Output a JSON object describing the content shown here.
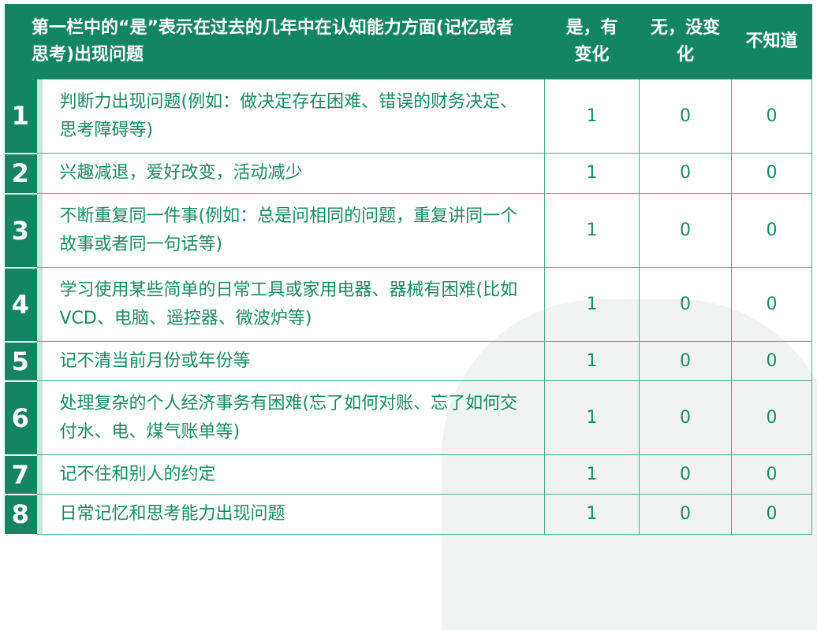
{
  "header": {
    "question": "第一栏中的“是”表示在过去的几年中在认知能力方面(记忆或者思考)出现问题",
    "yes": "是，有变化",
    "no": "无，没变化",
    "unknown": "不知道"
  },
  "rows": [
    {
      "num": "1",
      "text": "判断力出现问题(例如：做决定存在困难、错误的财务决定、思考障碍等)",
      "yes": "1",
      "no": "0",
      "unknown": "0"
    },
    {
      "num": "2",
      "text": "兴趣减退，爱好改变，活动减少",
      "yes": "1",
      "no": "0",
      "unknown": "0"
    },
    {
      "num": "3",
      "text": "不断重复同一件事(例如：总是问相同的问题，重复讲同一个故事或者同一句话等)",
      "yes": "1",
      "no": "0",
      "unknown": "0"
    },
    {
      "num": "4",
      "text": "学习使用某些简单的日常工具或家用电器、器械有困难(比如VCD、电脑、遥控器、微波炉等)",
      "yes": "1",
      "no": "0",
      "unknown": "0"
    },
    {
      "num": "5",
      "text": "记不清当前月份或年份等",
      "yes": "1",
      "no": "0",
      "unknown": "0"
    },
    {
      "num": "6",
      "text": "处理复杂的个人经济事务有困难(忘了如何对账、忘了如何交付水、电、煤气账单等)",
      "yes": "1",
      "no": "0",
      "unknown": "0"
    },
    {
      "num": "7",
      "text": "记不住和别人的约定",
      "yes": "1",
      "no": "0",
      "unknown": "0"
    },
    {
      "num": "8",
      "text": "日常记忆和思考能力出现问题",
      "yes": "1",
      "no": "0",
      "unknown": "0"
    }
  ]
}
